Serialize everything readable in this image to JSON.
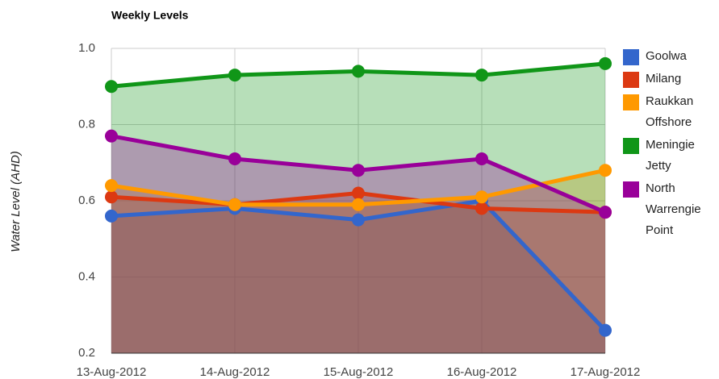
{
  "chart_data": {
    "type": "area",
    "title": "Weekly Levels",
    "y_label": "Water Level (AHD)",
    "categories": [
      "13-Aug-2012",
      "14-Aug-2012",
      "15-Aug-2012",
      "16-Aug-2012",
      "17-Aug-2012"
    ],
    "series": [
      {
        "name": "Goolwa",
        "color": "#3366cc",
        "values": [
          0.56,
          0.58,
          0.55,
          0.6,
          0.26
        ]
      },
      {
        "name": "Milang",
        "color": "#dc3912",
        "values": [
          0.61,
          0.59,
          0.62,
          0.58,
          0.57
        ]
      },
      {
        "name": "Raukkan Offshore",
        "color": "#ff9900",
        "values": [
          0.64,
          0.59,
          0.59,
          0.61,
          0.68
        ]
      },
      {
        "name": "Meningie Jetty",
        "color": "#109618",
        "values": [
          0.9,
          0.93,
          0.94,
          0.93,
          0.96
        ]
      },
      {
        "name": "North Warrengie Point",
        "color": "#990099",
        "values": [
          0.77,
          0.71,
          0.68,
          0.71,
          0.57
        ]
      }
    ],
    "ylim": [
      0.2,
      1
    ],
    "yticks": [
      0.2,
      0.4,
      0.6,
      0.8,
      {
        "value": 1,
        "label": "1.0"
      }
    ],
    "grid": true,
    "legend": "right"
  }
}
